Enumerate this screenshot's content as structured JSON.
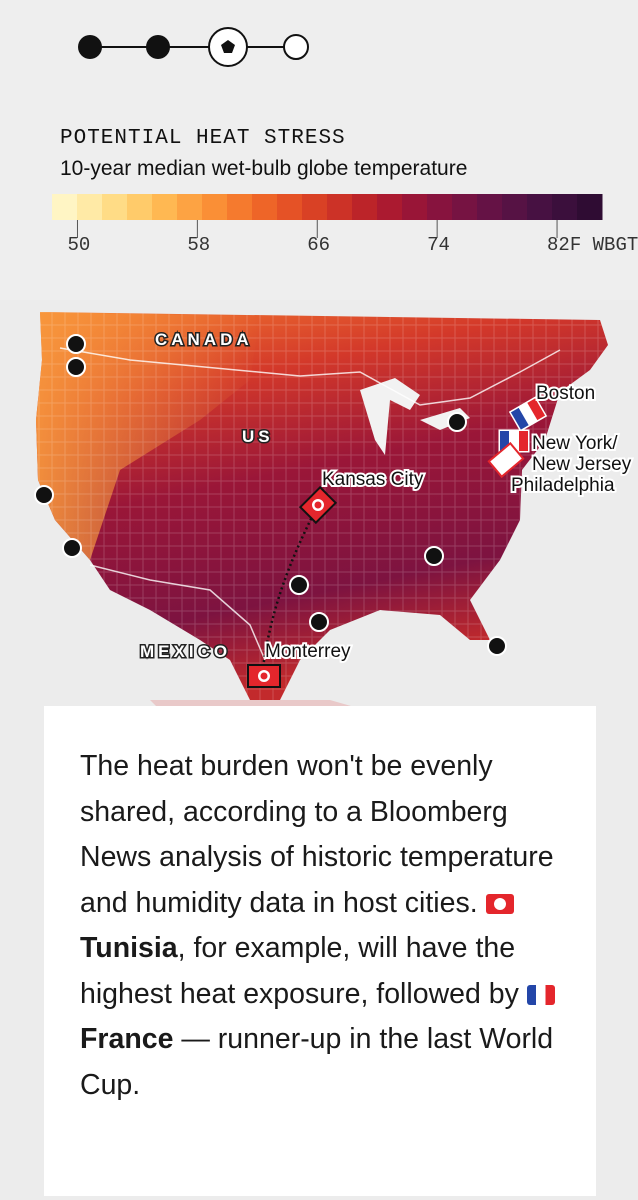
{
  "legend": {
    "title": "POTENTIAL HEAT STRESS",
    "subtitle": "10-year median wet-bulb globe temperature",
    "range": [
      48.3,
      85
    ],
    "ticks": [
      50,
      58,
      66,
      74,
      {
        "value": 82,
        "label": "82F WBGT"
      }
    ],
    "colors": [
      "#fff5c4",
      "#ffeaa6",
      "#ffdc86",
      "#ffcb6a",
      "#ffb852",
      "#fda343",
      "#fa8f36",
      "#f57a2e",
      "#ee6528",
      "#e55226",
      "#d94125",
      "#cc3227",
      "#bc2429",
      "#ab1a30",
      "#991537",
      "#87133e",
      "#761342",
      "#651245",
      "#561244",
      "#471142",
      "#3b0f3c",
      "#2f0c33"
    ]
  },
  "map": {
    "regions": [
      "CANADA",
      "US",
      "MEXICO"
    ],
    "cities": [
      "Boston",
      "New York/",
      "New Jersey",
      "Philadelphia",
      "Kansas City",
      "Monterrey"
    ]
  },
  "paragraph": {
    "part1": "The heat burden won't be evenly shared, according to a Bloomberg News analysis of historic temperature and humidity data in host cities.",
    "team1": "Tunisia",
    "part2": ", for example, will have the highest heat exposure, followed by",
    "team2": "France",
    "part3": " — runner-up in the last World Cup."
  }
}
